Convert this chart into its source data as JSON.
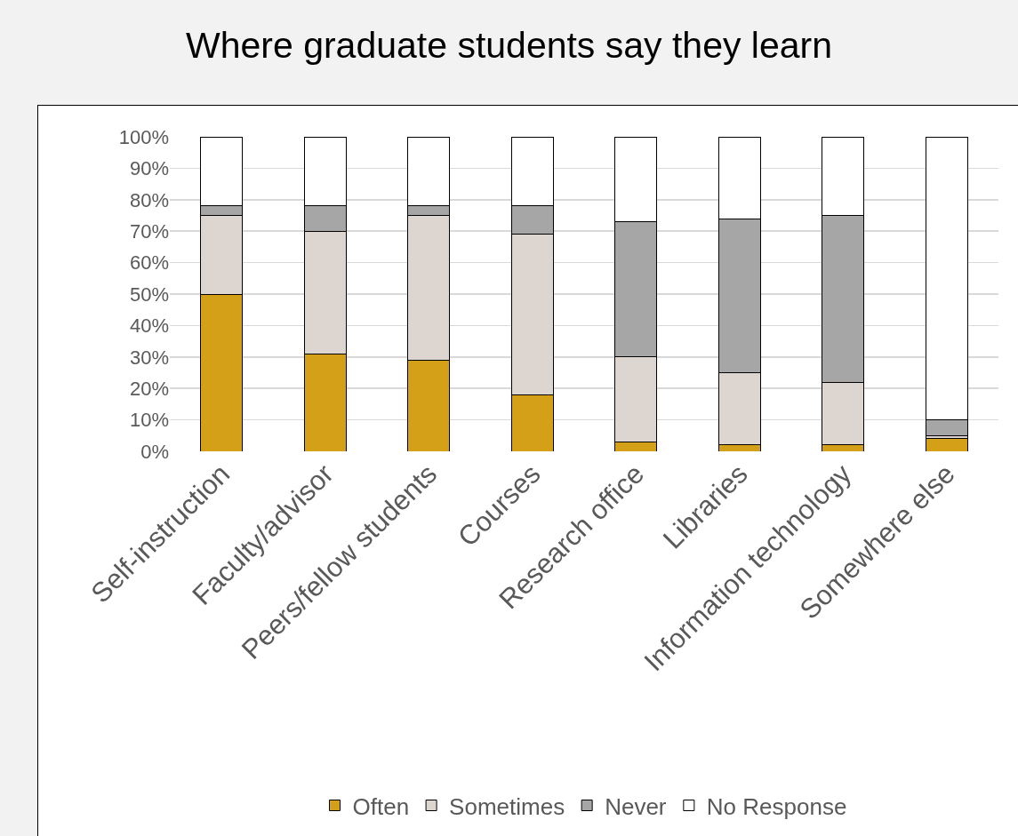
{
  "chart_data": {
    "type": "bar",
    "title": "Where graduate students say they learn",
    "stacked": true,
    "categories": [
      "Self-instruction",
      "Faculty/advisor",
      "Peers/fellow students",
      "Courses",
      "Research office",
      "Libraries",
      "Information technology",
      "Somewhere else"
    ],
    "series": [
      {
        "name": "Often",
        "color": "#d4a017",
        "values": [
          50,
          31,
          29,
          18,
          3,
          2,
          2,
          4
        ]
      },
      {
        "name": "Sometimes",
        "color": "#ddd5cf",
        "values": [
          25,
          39,
          46,
          51,
          27,
          23,
          20,
          1
        ]
      },
      {
        "name": "Never",
        "color": "#a6a6a6",
        "values": [
          3,
          8,
          3,
          9,
          43,
          49,
          53,
          5
        ]
      },
      {
        "name": "No Response",
        "color": "#ffffff",
        "values": [
          22,
          22,
          22,
          22,
          27,
          26,
          25,
          90
        ]
      }
    ],
    "ylim": [
      0,
      100
    ],
    "yticks": [
      {
        "value": 0,
        "label": "0%"
      },
      {
        "value": 10,
        "label": "10%"
      },
      {
        "value": 20,
        "label": "20%"
      },
      {
        "value": 30,
        "label": "30%"
      },
      {
        "value": 40,
        "label": "40%"
      },
      {
        "value": 50,
        "label": "50%"
      },
      {
        "value": 60,
        "label": "60%"
      },
      {
        "value": 70,
        "label": "70%"
      },
      {
        "value": 80,
        "label": "80%"
      },
      {
        "value": 90,
        "label": "90%"
      },
      {
        "value": 100,
        "label": "100%"
      }
    ],
    "grid": "y",
    "legend": "bottom"
  }
}
